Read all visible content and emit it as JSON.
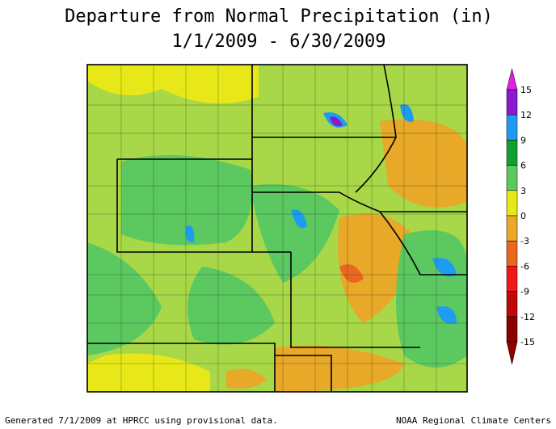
{
  "header": {
    "title": "Departure from Normal Precipitation (in)",
    "subtitle": "1/1/2009 - 6/30/2009"
  },
  "legend": {
    "ticks": [
      15,
      12,
      9,
      6,
      3,
      0,
      -3,
      -6,
      -9,
      -12,
      -15
    ],
    "colors": [
      "#e020e0",
      "#8a1ad0",
      "#1e9cf0",
      "#12a030",
      "#5cc860",
      "#e8e818",
      "#e8a828",
      "#e86820",
      "#f01818",
      "#c00808",
      "#8c0000"
    ]
  },
  "footer": {
    "left": "Generated 7/1/2009 at HPRCC using provisional data.",
    "right": "NOAA Regional Climate Centers"
  }
}
